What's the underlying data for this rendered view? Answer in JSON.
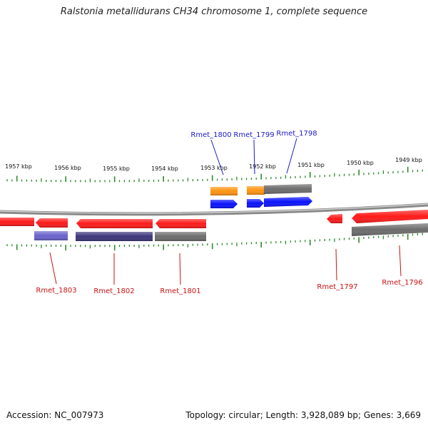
{
  "title": "Ralstonia metallidurans CH34 chromosome 1, complete sequence",
  "footer": {
    "accession": "Accession: NC_007973",
    "summary": "Topology: circular; Length: 3,928,089 bp; Genes: 3,669"
  },
  "colors": {
    "backbone": "#8a8a8a",
    "tick": "#2e8b2e",
    "red_gene": "#ff1a1a",
    "blue_gene": "#0a12ff",
    "orange_gene": "#ff9410",
    "gray_gene": "#6c6c6c",
    "navy_gene": "#3c367a",
    "lavender_gene": "#6a62cc",
    "blue_label": "#1a1acc",
    "red_label": "#cc1111"
  },
  "scale": {
    "unit": "kbp",
    "tick_labels": [
      "1957 kbp",
      "1956 kbp",
      "1955 kbp",
      "1954 kbp",
      "1953 kbp",
      "1952 kbp",
      "1951 kbp",
      "1950 kbp",
      "1949 kbp"
    ]
  },
  "genes": {
    "top": [
      "Rmet_1800",
      "Rmet_1799",
      "Rmet_1798"
    ],
    "bottom": [
      "Rmet_1803",
      "Rmet_1802",
      "Rmet_1801",
      "Rmet_1797",
      "Rmet_1796"
    ]
  }
}
